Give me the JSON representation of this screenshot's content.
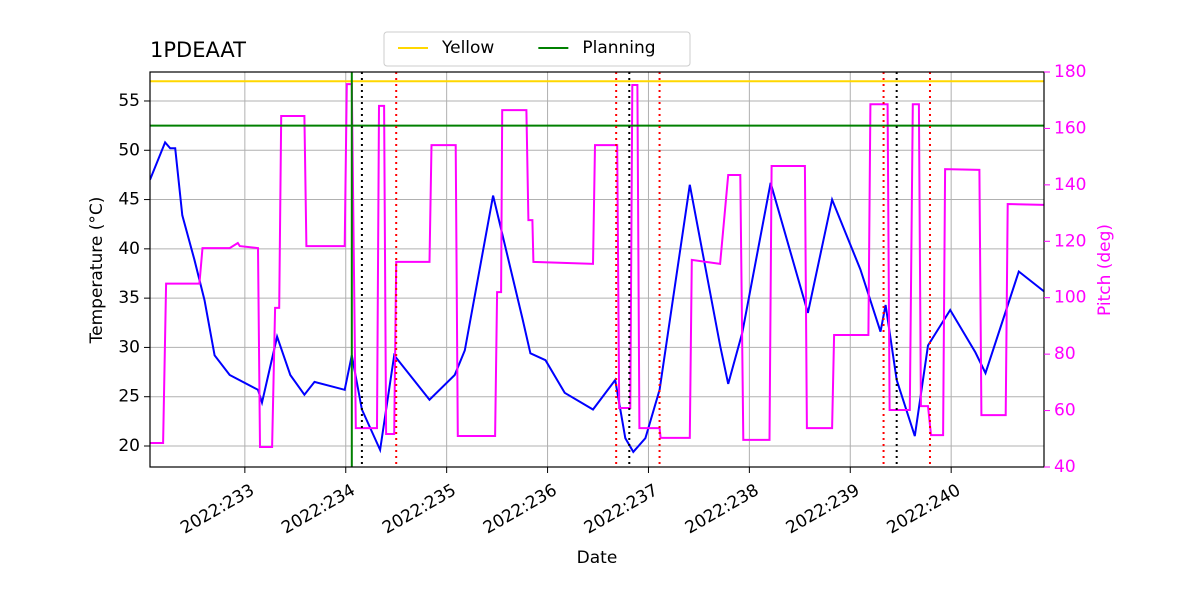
{
  "chart_data": {
    "type": "line",
    "title": "1PDEAAT",
    "xlabel": "Date",
    "ylabel": "Temperature (°C)",
    "y2label": "Pitch (deg)",
    "y2color": "#ff00ff",
    "xlim": [
      232.06,
      240.92
    ],
    "xticks": [
      {
        "value": 233,
        "label": "2022:233"
      },
      {
        "value": 234,
        "label": "2022:234"
      },
      {
        "value": 235,
        "label": "2022:235"
      },
      {
        "value": 236,
        "label": "2022:236"
      },
      {
        "value": 237,
        "label": "2022:237"
      },
      {
        "value": 238,
        "label": "2022:238"
      },
      {
        "value": 239,
        "label": "2022:239"
      },
      {
        "value": 240,
        "label": "2022:240"
      }
    ],
    "ylim": [
      17.87,
      57.94
    ],
    "yticks": [
      20,
      25,
      30,
      35,
      40,
      45,
      50,
      55
    ],
    "y2lim": [
      40,
      180
    ],
    "y2ticks": [
      40,
      60,
      80,
      100,
      120,
      140,
      160,
      180
    ],
    "grid": true,
    "legend": "top",
    "hlines": [
      {
        "name": "Yellow",
        "color": "#ffd700",
        "value": 57
      },
      {
        "name": "Planning",
        "color": "#008000",
        "value": 52.5
      }
    ],
    "vlines": [
      {
        "color": "#008000",
        "style": "solid",
        "x": [
          234.06
        ]
      },
      {
        "color": "#000000",
        "style": "dotted",
        "x": [
          234.16,
          236.81,
          239.46
        ]
      },
      {
        "color": "#ff0000",
        "style": "dotted",
        "x": [
          234.5,
          236.68,
          237.11,
          239.33,
          239.79
        ]
      }
    ],
    "series": [
      {
        "color": "#0000ff",
        "axis": "y",
        "x": [
          232.06,
          232.21,
          232.26,
          232.31,
          232.38,
          232.5,
          232.6,
          232.7,
          232.85,
          233.13,
          233.17,
          233.32,
          233.45,
          233.59,
          233.69,
          233.99,
          234.06,
          234.16,
          234.34,
          234.48,
          234.83,
          235.08,
          235.18,
          235.46,
          235.75,
          235.83,
          235.98,
          236.17,
          236.45,
          236.67,
          236.77,
          236.85,
          236.97,
          237.11,
          237.41,
          237.71,
          237.79,
          237.93,
          238.21,
          238.58,
          238.82,
          239.1,
          239.3,
          239.35,
          239.46,
          239.64,
          239.77,
          239.99,
          240.24,
          240.34,
          240.67,
          240.93
        ],
        "values": [
          47.0,
          50.8,
          50.2,
          50.2,
          43.4,
          38.9,
          34.8,
          29.2,
          27.2,
          25.7,
          24.4,
          31.1,
          27.2,
          25.2,
          26.5,
          25.7,
          29.2,
          23.7,
          19.6,
          29.2,
          24.7,
          27.2,
          29.7,
          45.4,
          33.0,
          29.4,
          28.7,
          25.4,
          23.7,
          26.7,
          20.8,
          19.4,
          20.8,
          25.7,
          46.5,
          30.2,
          26.3,
          31.5,
          46.7,
          33.5,
          45.0,
          37.9,
          31.6,
          34.3,
          26.7,
          21.0,
          30.2,
          33.8,
          29.5,
          27.4,
          37.7,
          35.6
        ]
      },
      {
        "color": "#ff00ff",
        "axis": "y2",
        "x": [
          232.06,
          232.19,
          232.22,
          232.55,
          232.58,
          232.85,
          232.93,
          232.95,
          233.13,
          233.15,
          233.27,
          233.3,
          233.34,
          233.36,
          233.59,
          233.61,
          233.99,
          234.01,
          234.06,
          234.1,
          234.31,
          234.33,
          234.38,
          234.4,
          234.48,
          234.5,
          234.83,
          234.85,
          235.09,
          235.11,
          235.48,
          235.5,
          235.54,
          235.55,
          235.79,
          235.81,
          235.85,
          235.86,
          236.45,
          236.47,
          236.69,
          236.71,
          236.82,
          236.84,
          236.89,
          236.91,
          237.11,
          237.12,
          237.41,
          237.43,
          237.71,
          237.79,
          237.91,
          237.94,
          238.2,
          238.22,
          238.55,
          238.57,
          238.82,
          238.84,
          239.18,
          239.2,
          239.37,
          239.39,
          239.59,
          239.62,
          239.68,
          239.7,
          239.77,
          239.8,
          239.92,
          239.94,
          240.28,
          240.3,
          240.54,
          240.56,
          240.92
        ],
        "values": [
          48.5,
          48.5,
          105,
          105,
          117.6,
          117.6,
          119.4,
          118.3,
          117.6,
          47.1,
          47.1,
          96.4,
          96.4,
          164.4,
          164.4,
          118.3,
          118.3,
          175.7,
          175.7,
          53.8,
          53.8,
          168,
          168,
          51.7,
          51.7,
          112.7,
          112.7,
          154.1,
          154.1,
          51,
          51,
          102,
          102,
          166.5,
          166.5,
          127.5,
          127.5,
          112.7,
          112,
          154.1,
          154.1,
          60.9,
          60.9,
          175.4,
          175.4,
          53.8,
          53.8,
          50.3,
          50.3,
          113.4,
          112,
          143.5,
          143.5,
          49.6,
          49.6,
          146.7,
          146.7,
          53.8,
          53.8,
          86.8,
          86.8,
          168.6,
          168.6,
          60.2,
          60.2,
          168.6,
          168.6,
          61.6,
          61.6,
          51.3,
          51.3,
          145.6,
          145.3,
          58.4,
          58.4,
          133.2,
          132.9
        ]
      }
    ]
  }
}
